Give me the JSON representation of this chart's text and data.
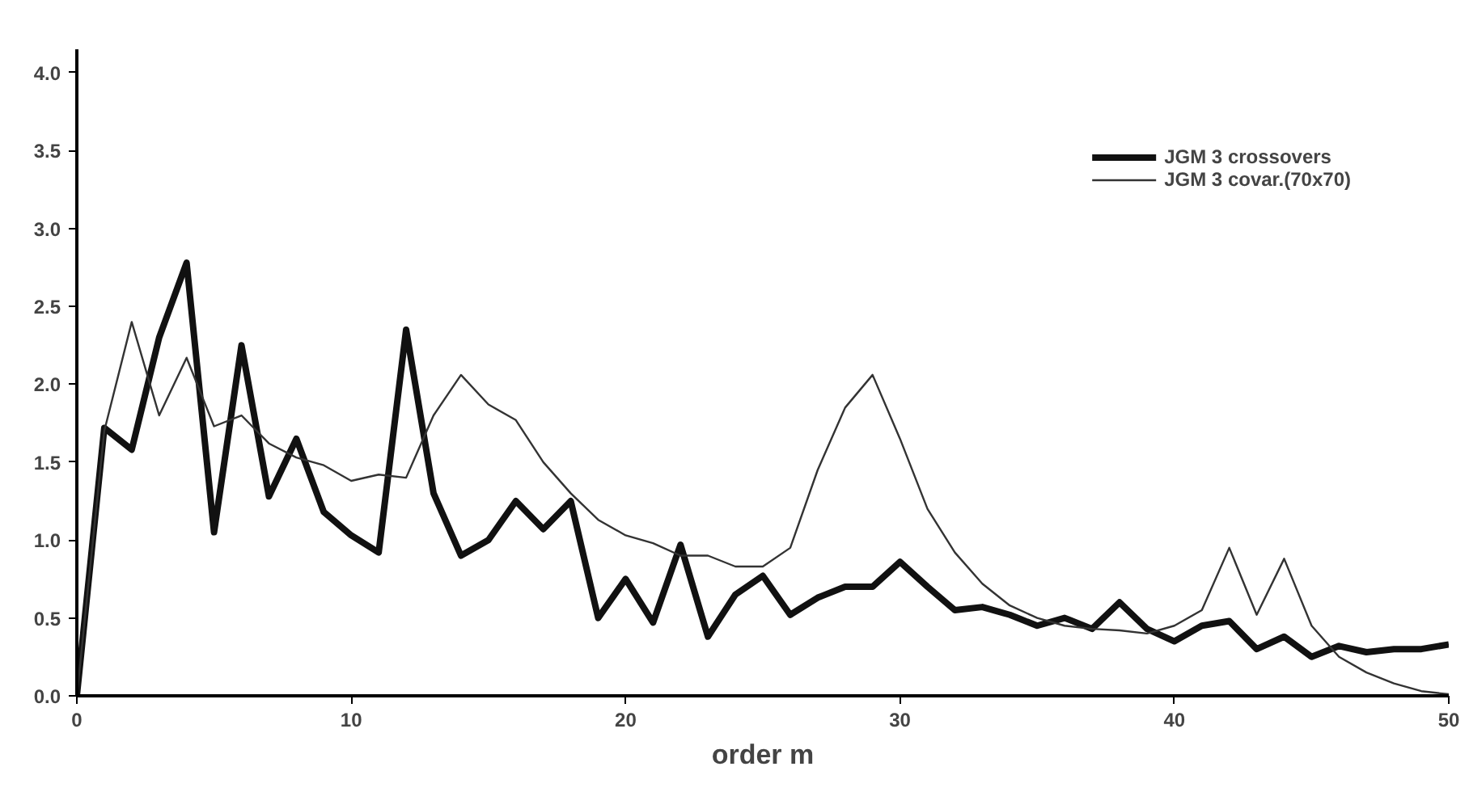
{
  "chart_data": {
    "type": "line",
    "xlabel": "order m",
    "x": [
      0,
      1,
      2,
      3,
      4,
      5,
      6,
      7,
      8,
      9,
      10,
      11,
      12,
      13,
      14,
      15,
      16,
      17,
      18,
      19,
      20,
      21,
      22,
      23,
      24,
      25,
      26,
      27,
      28,
      29,
      30,
      31,
      32,
      33,
      34,
      35,
      36,
      37,
      38,
      39,
      40,
      41,
      42,
      43,
      44,
      45,
      46,
      47,
      48,
      49,
      50
    ],
    "series": [
      {
        "name": "JGM 3 crossovers",
        "color": "#111111",
        "values": [
          0,
          1.72,
          1.58,
          2.3,
          2.78,
          1.05,
          2.25,
          1.28,
          1.65,
          1.18,
          1.03,
          0.92,
          2.35,
          1.3,
          0.9,
          1.0,
          1.25,
          1.07,
          1.25,
          0.5,
          0.75,
          0.47,
          0.97,
          0.38,
          0.65,
          0.77,
          0.52,
          0.63,
          0.7,
          0.7,
          0.86,
          0.7,
          0.55,
          0.57,
          0.52,
          0.45,
          0.5,
          0.43,
          0.6,
          0.43,
          0.35,
          0.45,
          0.48,
          0.3,
          0.38,
          0.25,
          0.32,
          0.28,
          0.3,
          0.3,
          0.33
        ]
      },
      {
        "name": "JGM 3 covar.(70x70)",
        "color": "#333333",
        "values": [
          0,
          1.7,
          2.4,
          1.8,
          2.17,
          1.73,
          1.8,
          1.62,
          1.53,
          1.48,
          1.38,
          1.42,
          1.4,
          1.8,
          2.06,
          1.87,
          1.77,
          1.5,
          1.3,
          1.13,
          1.03,
          0.98,
          0.9,
          0.9,
          0.83,
          0.83,
          0.95,
          1.45,
          1.85,
          2.06,
          1.65,
          1.2,
          0.92,
          0.72,
          0.58,
          0.5,
          0.45,
          0.43,
          0.42,
          0.4,
          0.45,
          0.55,
          0.95,
          0.52,
          0.88,
          0.45,
          0.25,
          0.15,
          0.08,
          0.03,
          0.01
        ]
      }
    ],
    "xlim": [
      0,
      50
    ],
    "xticks": [
      0,
      10,
      20,
      30,
      40,
      50
    ],
    "ylim": [
      0,
      4.15
    ],
    "yticks": [
      {
        "value": 0,
        "label": "0.0"
      },
      0.5,
      {
        "value": 1,
        "label": "1.0"
      },
      1.5,
      {
        "value": 2,
        "label": "2.0"
      },
      2.5,
      {
        "value": 3,
        "label": "3.0"
      },
      3.5,
      {
        "value": 4,
        "label": "4.0"
      }
    ],
    "grid": false,
    "legend": "top right",
    "marker": "none",
    "line_style": "solid"
  }
}
